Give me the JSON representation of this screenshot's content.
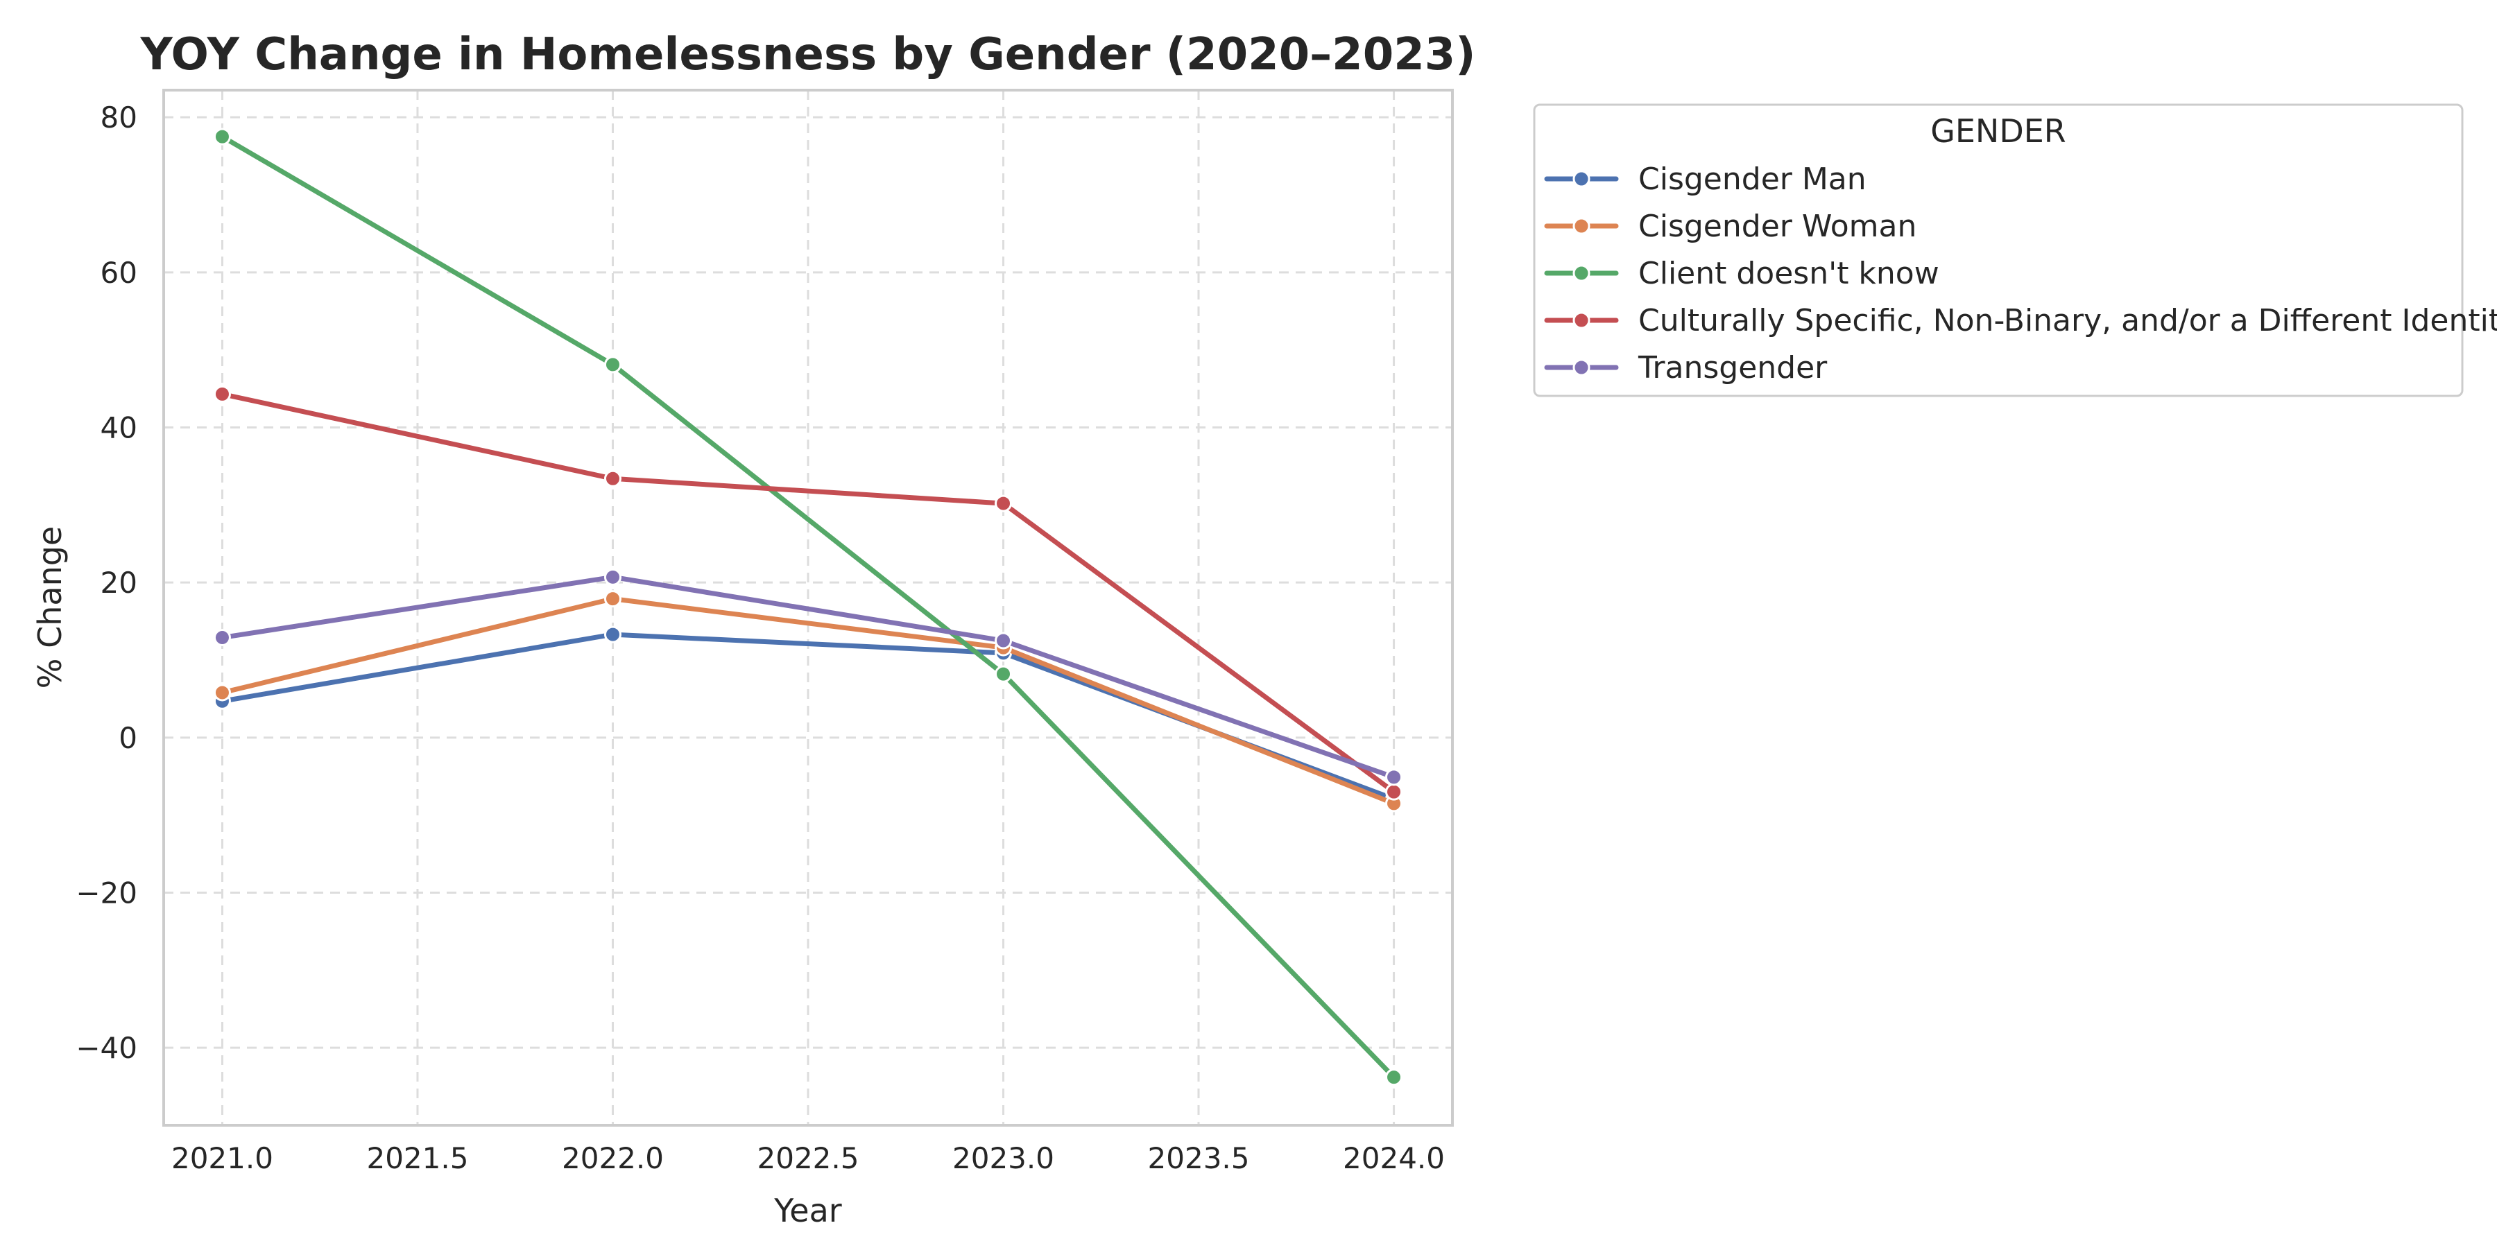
{
  "chart_data": {
    "type": "line",
    "title": "YOY Change in Homelessness by Gender (2020–2023)",
    "xlabel": "Year",
    "ylabel": "% Change",
    "x": [
      2021,
      2022,
      2023,
      2024
    ],
    "xlim": [
      2020.85,
      2024.15
    ],
    "ylim": [
      -50,
      83.5
    ],
    "xticks": [
      "2021.0",
      "2021.5",
      "2022.0",
      "2022.5",
      "2023.0",
      "2023.5",
      "2024.0"
    ],
    "yticks": [
      "80",
      "60",
      "40",
      "20",
      "0",
      "−20",
      "−40"
    ],
    "grid": true,
    "legend": {
      "title": "GENDER",
      "placement": "outside-upper-right"
    },
    "series": [
      {
        "name": "Cisgender Man",
        "color": "#4c72b0",
        "values": [
          4.7,
          13.3,
          10.9,
          -7.9
        ]
      },
      {
        "name": "Cisgender Woman",
        "color": "#dd8452",
        "values": [
          5.8,
          17.9,
          11.6,
          -8.5
        ]
      },
      {
        "name": "Client doesn't know",
        "color": "#55a868",
        "values": [
          77.5,
          48.1,
          8.2,
          -43.8
        ]
      },
      {
        "name": "Culturally Specific, Non-Binary, and/or a Different Identity",
        "color": "#c44e52",
        "values": [
          44.3,
          33.4,
          30.2,
          -7.0
        ]
      },
      {
        "name": "Transgender",
        "color": "#8172b3",
        "values": [
          12.9,
          20.7,
          12.5,
          -5.1
        ]
      }
    ]
  }
}
